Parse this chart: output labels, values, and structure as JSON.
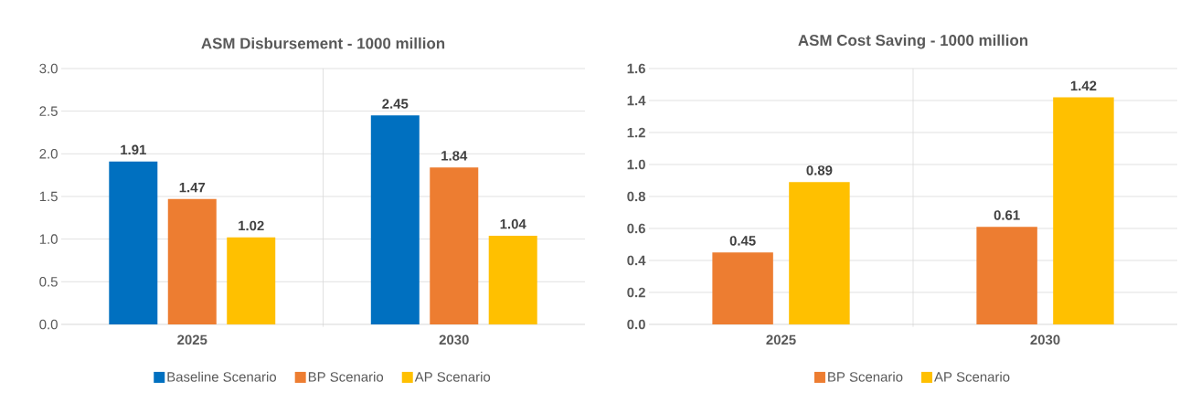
{
  "chart_data": [
    {
      "type": "bar",
      "title": "ASM Disbursement  - 1000 million",
      "categories": [
        "2025",
        "2030"
      ],
      "series": [
        {
          "name": "Baseline Scenario",
          "color": "#0070c0",
          "values": [
            1.91,
            2.45
          ]
        },
        {
          "name": "BP Scenario",
          "color": "#ed7d31",
          "values": [
            1.47,
            1.84
          ]
        },
        {
          "name": "AP Scenario",
          "color": "#ffc000",
          "values": [
            1.02,
            1.04
          ]
        }
      ],
      "ylim": [
        0,
        3
      ],
      "yticks": [
        {
          "value": 0,
          "label": "0.0"
        },
        {
          "value": 0.5,
          "label": "0.5"
        },
        {
          "value": 1,
          "label": "1.0"
        },
        {
          "value": 1.5,
          "label": "1.5"
        },
        {
          "value": 2,
          "label": "2.0"
        },
        {
          "value": 2.5,
          "label": "2.5"
        },
        {
          "value": 3,
          "label": "3.0"
        }
      ],
      "grid": true,
      "legend": "bottom",
      "data_labels": true
    },
    {
      "type": "bar",
      "title": "ASM Cost Saving  - 1000 million",
      "categories": [
        "2025",
        "2030"
      ],
      "series": [
        {
          "name": "BP Scenario",
          "color": "#ed7d31",
          "values": [
            0.45,
            0.61
          ]
        },
        {
          "name": "AP Scenario",
          "color": "#ffc000",
          "values": [
            0.89,
            1.42
          ]
        }
      ],
      "ylim": [
        0,
        1.6
      ],
      "yticks": [
        {
          "value": 0,
          "label": "0.0"
        },
        {
          "value": 0.2,
          "label": "0.2"
        },
        {
          "value": 0.4,
          "label": "0.4"
        },
        {
          "value": 0.6,
          "label": "0.6"
        },
        {
          "value": 0.8,
          "label": "0.8"
        },
        {
          "value": 1,
          "label": "1.0"
        },
        {
          "value": 1.2,
          "label": "1.2"
        },
        {
          "value": 1.4,
          "label": "1.4"
        },
        {
          "value": 1.6,
          "label": "1.6"
        }
      ],
      "grid": true,
      "legend": "bottom",
      "data_labels": true
    }
  ]
}
